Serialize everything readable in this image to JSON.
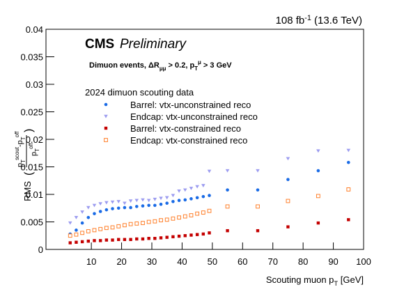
{
  "chart_data": {
    "type": "scatter",
    "lumi": [
      {
        "t": "108 fb"
      },
      {
        "sup": "-1"
      },
      {
        "t": " (13.6 TeV)"
      }
    ],
    "cms": "CMS",
    "preliminary": "Preliminary",
    "selection": [
      {
        "t": "Dimuon events,  ΔR"
      },
      {
        "sub": "μμ"
      },
      {
        "t": " > 0.2, p"
      },
      {
        "sub": "T"
      },
      {
        "sup": "μ"
      },
      {
        "t": " > 3 GeV"
      }
    ],
    "legend_title": "2024 dimuon scouting data",
    "x_label": [
      {
        "t": "Scouting muon p"
      },
      {
        "sub": "T"
      },
      {
        "t": " [GeV]"
      }
    ],
    "y_label": {
      "prefix": "RMS",
      "open": "(",
      "close": ")",
      "numerator": [
        {
          "t": "p"
        },
        {
          "sub": "T"
        },
        {
          "sup": "scout"
        },
        {
          "t": "-p"
        },
        {
          "sub": "T"
        },
        {
          "sup": "off"
        }
      ],
      "denominator": [
        {
          "t": "p"
        },
        {
          "sub": "T"
        },
        {
          "sup": "off"
        }
      ]
    },
    "x": [
      3,
      5,
      7,
      9,
      11,
      13,
      15,
      17,
      19,
      21,
      23,
      25,
      27,
      29,
      31,
      33,
      35,
      37,
      39,
      41,
      43,
      45,
      47,
      49,
      55,
      65,
      75,
      85,
      95
    ],
    "xlim": [
      -5,
      100
    ],
    "xticks": [
      10,
      20,
      30,
      40,
      50,
      60,
      70,
      80,
      90,
      100
    ],
    "ylim": [
      0,
      0.04
    ],
    "yticks": [
      0,
      0.005,
      0.01,
      0.015,
      0.02,
      0.025,
      0.03,
      0.035,
      0.04
    ],
    "series": [
      {
        "name": "Barrel: vtx-unconstrained reco",
        "color": "#1a6be6",
        "marker": "circle",
        "values": [
          0.0028,
          0.0035,
          0.0048,
          0.0058,
          0.0065,
          0.0069,
          0.0072,
          0.0074,
          0.0075,
          0.0076,
          0.0076,
          0.0078,
          0.0079,
          0.008,
          0.008,
          0.0082,
          0.0084,
          0.0087,
          0.0089,
          0.009,
          0.0092,
          0.0094,
          0.0096,
          0.0098,
          0.0108,
          0.0108,
          0.0127,
          0.0143,
          0.0158
        ]
      },
      {
        "name": "Endcap: vtx-unconstrained reco",
        "color": "#9c9cf0",
        "marker": "triangle-down",
        "values": [
          0.0048,
          0.0058,
          0.0068,
          0.0076,
          0.008,
          0.0083,
          0.0085,
          0.0086,
          0.0087,
          0.0084,
          0.0088,
          0.0089,
          0.009,
          0.0089,
          0.0091,
          0.0093,
          0.0094,
          0.0098,
          0.0106,
          0.0108,
          0.0111,
          0.0114,
          0.0116,
          0.0142,
          0.0143,
          0.0143,
          0.0165,
          0.0179,
          0.018
        ]
      },
      {
        "name": "Barrel: vtx-constrained reco",
        "color": "#c40000",
        "marker": "square",
        "values": [
          0.0012,
          0.0013,
          0.0014,
          0.0015,
          0.0016,
          0.0016,
          0.0017,
          0.0017,
          0.0018,
          0.0018,
          0.0018,
          0.0019,
          0.0019,
          0.002,
          0.002,
          0.0021,
          0.0022,
          0.0023,
          0.0024,
          0.0025,
          0.0026,
          0.0027,
          0.0028,
          0.003,
          0.0034,
          0.0034,
          0.0041,
          0.0048,
          0.0054
        ]
      },
      {
        "name": "Endcap: vtx-constrained reco",
        "color": "#ff7f2a",
        "marker": "square-open",
        "values": [
          0.0025,
          0.0027,
          0.003,
          0.0033,
          0.0035,
          0.0037,
          0.0039,
          0.004,
          0.0042,
          0.0044,
          0.0046,
          0.0047,
          0.0048,
          0.005,
          0.0051,
          0.0053,
          0.0054,
          0.0056,
          0.0058,
          0.006,
          0.0062,
          0.0065,
          0.0067,
          0.007,
          0.0078,
          0.0078,
          0.0088,
          0.0097,
          0.0109
        ]
      }
    ]
  }
}
